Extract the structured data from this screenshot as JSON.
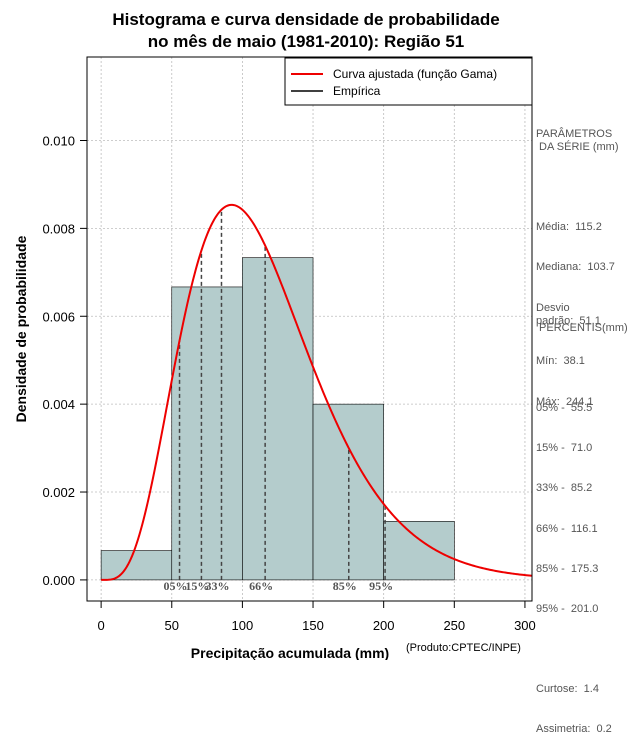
{
  "chart_data": {
    "type": "bar",
    "title_line1": "Histograma e curva densidade de probabilidade",
    "title_line2": "no mês de maio (1981-2010): Região 51",
    "xlabel": "Precipitação acumulada (mm)",
    "ylabel": "Densidade de probabilidade",
    "credit": "(Produto:CPTEC/INPE)",
    "xlim": [
      -10,
      305
    ],
    "ylim": [
      -0.00048,
      0.0119
    ],
    "xticks": [
      0,
      50,
      100,
      150,
      200,
      250,
      300
    ],
    "yticks": [
      0.0,
      0.002,
      0.004,
      0.006,
      0.008,
      0.01
    ],
    "ytick_labels": [
      "0.000",
      "0.002",
      "0.004",
      "0.006",
      "0.008",
      "0.010"
    ],
    "grid": true,
    "bins": [
      {
        "start": 0,
        "end": 50,
        "density": 0.000667
      },
      {
        "start": 50,
        "end": 100,
        "density": 0.006667
      },
      {
        "start": 100,
        "end": 150,
        "density": 0.007333
      },
      {
        "start": 150,
        "end": 200,
        "density": 0.004
      },
      {
        "start": 200,
        "end": 250,
        "density": 0.001333
      }
    ],
    "gamma_fit": {
      "shape": 5.07,
      "scale": 22.7
    },
    "percentile_markers": [
      {
        "label": "05%",
        "value": 55.5
      },
      {
        "label": "15%",
        "value": 71.0
      },
      {
        "label": "33%",
        "value": 85.2
      },
      {
        "label": "66%",
        "value": 116.1
      },
      {
        "label": "85%",
        "value": 175.3
      },
      {
        "label": "95%",
        "value": 201.0
      }
    ],
    "legend": {
      "position": "top-right",
      "entries": [
        {
          "label": "Curva ajustada (função Gama)",
          "color": "#ee0000"
        },
        {
          "label": "Empírica",
          "color": "#000000"
        }
      ]
    },
    "colors": {
      "bar_fill": "#b4cccc",
      "curve": "#ee0000"
    }
  },
  "sidebar": {
    "params_title": "PARÂMETROS\n DA SÉRIE (mm)",
    "media": "Média:  115.2",
    "mediana": "Mediana:  103.7",
    "desvio": "Desvio\npadrão:  51.1",
    "min": "Mín:  38.1",
    "max": "Máx:  244.1",
    "percentis_title": " PERCENTIS(mm)",
    "percentis": [
      "05% -  55.5",
      "15% -  71.0",
      "33% -  85.2",
      "66% -  116.1",
      "85% -  175.3",
      "95% -  201.0"
    ],
    "curtose": "Curtose:  1.4",
    "assimetria": "Assimetria:  0.2"
  }
}
